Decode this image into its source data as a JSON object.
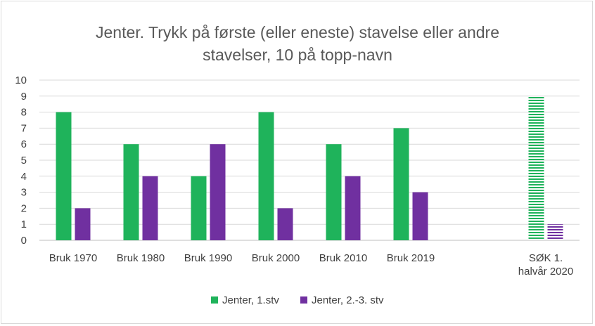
{
  "chart_data": {
    "type": "bar",
    "title_lines": [
      "Jenter. Trykk på første (eller eneste) stavelse eller andre",
      "stavelser, 10 på topp-navn"
    ],
    "categories": [
      [
        "Bruk 1970"
      ],
      [
        "Bruk 1980"
      ],
      [
        "Bruk 1990"
      ],
      [
        "Bruk 2000"
      ],
      [
        "Bruk 2010"
      ],
      [
        "Bruk 2019"
      ],
      [
        ""
      ],
      [
        "SØK 1.",
        "halvår 2020"
      ]
    ],
    "series": [
      {
        "name": "Jenter, 1.stv",
        "color": "#1fb35b",
        "values": [
          8,
          6,
          4,
          8,
          6,
          7,
          null,
          9
        ]
      },
      {
        "name": "Jenter, 2.-3. stv",
        "color": "#7030a0",
        "values": [
          2,
          4,
          6,
          2,
          4,
          3,
          null,
          1
        ]
      }
    ],
    "striped_categories": [
      7
    ],
    "ylim": [
      0,
      10
    ],
    "yticks": [
      0,
      1,
      2,
      3,
      4,
      5,
      6,
      7,
      8,
      9,
      10
    ],
    "grid": true,
    "legend_position": "bottom"
  }
}
